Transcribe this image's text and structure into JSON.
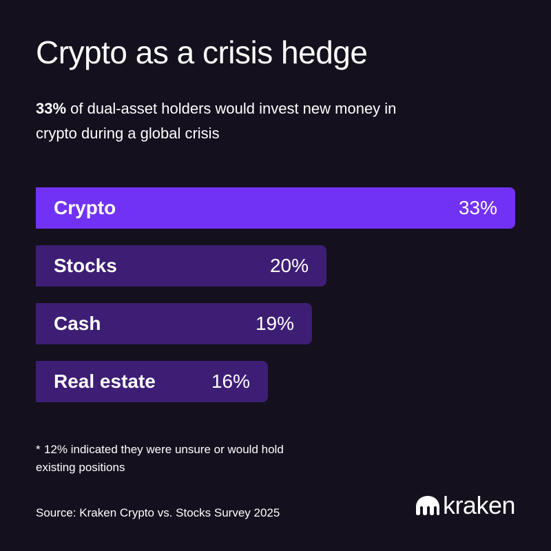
{
  "header": {
    "title": "Crypto as a crisis hedge",
    "subtitle_bold": "33%",
    "subtitle_rest": " of dual-asset holders would invest new money in crypto during a global crisis"
  },
  "chart_data": {
    "type": "bar",
    "orientation": "horizontal",
    "categories": [
      "Crypto",
      "Stocks",
      "Cash",
      "Real estate"
    ],
    "values": [
      33,
      20,
      19,
      16
    ],
    "value_labels": [
      "33%",
      "20%",
      "19%",
      "16%"
    ],
    "unit": "%",
    "highlight_color": "#7132f5",
    "bar_color": "#3d1e74",
    "grid": false
  },
  "footnote": {
    "mark": "*",
    "text": "12% indicated they were unsure or would hold existing positions"
  },
  "source": "Source: Kraken Crypto vs. Stocks Survey 2025",
  "brand": {
    "name": "kraken",
    "icon": "kraken-logo-icon"
  }
}
